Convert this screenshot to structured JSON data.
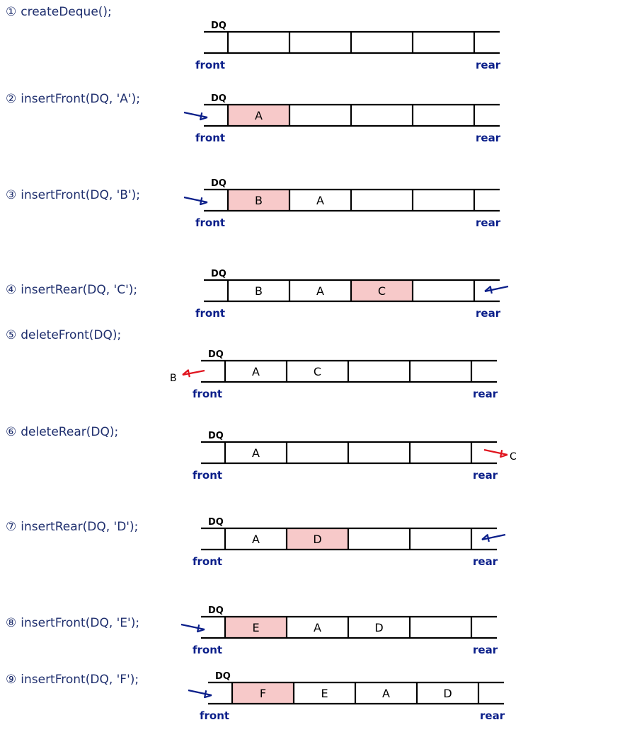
{
  "labels": {
    "dq": "DQ",
    "front": "front",
    "rear": "rear"
  },
  "colors": {
    "highlight": "#f7c9c9",
    "insert_arrow": "#0b1f8a",
    "delete_arrow": "#e0141e"
  },
  "steps": [
    {
      "number": "①",
      "op": "createDeque();",
      "cells": [
        "",
        "",
        "",
        "",
        ""
      ],
      "highlight": -1
    },
    {
      "number": "②",
      "op": "insertFront(DQ, 'A');",
      "cells": [
        "A",
        "",
        "",
        "",
        ""
      ],
      "highlight": 0,
      "arrow": "insert-front"
    },
    {
      "number": "③",
      "op": "insertFront(DQ, 'B');",
      "cells": [
        "B",
        "A",
        "",
        "",
        ""
      ],
      "highlight": 0,
      "arrow": "insert-front"
    },
    {
      "number": "④",
      "op": "insertRear(DQ, 'C');",
      "cells": [
        "B",
        "A",
        "C",
        "",
        ""
      ],
      "highlight": 2,
      "arrow": "insert-rear"
    },
    {
      "number": "⑤",
      "op": "deleteFront(DQ);",
      "cells": [
        "A",
        "C",
        "",
        "",
        ""
      ],
      "highlight": -1,
      "arrow": "delete-front",
      "removed": "B"
    },
    {
      "number": "⑥",
      "op": "deleteRear(DQ);",
      "cells": [
        "A",
        "",
        "",
        "",
        ""
      ],
      "highlight": -1,
      "arrow": "delete-rear",
      "removed": "C"
    },
    {
      "number": "⑦",
      "op": "insertRear(DQ, 'D');",
      "cells": [
        "A",
        "D",
        "",
        "",
        ""
      ],
      "highlight": 1,
      "arrow": "insert-rear"
    },
    {
      "number": "⑧",
      "op": "insertFront(DQ, 'E');",
      "cells": [
        "E",
        "A",
        "D",
        "",
        ""
      ],
      "highlight": 0,
      "arrow": "insert-front"
    },
    {
      "number": "⑨",
      "op": "insertFront(DQ, 'F');",
      "cells": [
        "F",
        "E",
        "A",
        "D",
        ""
      ],
      "highlight": 0,
      "arrow": "insert-front"
    }
  ]
}
